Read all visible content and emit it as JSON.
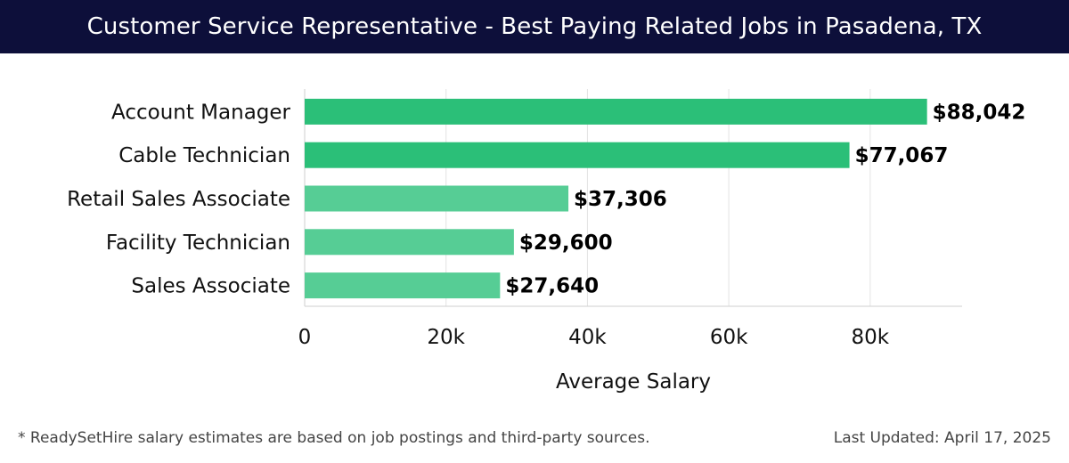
{
  "header": {
    "title": "Customer Service Representative - Best Paying Related Jobs in Pasadena, TX"
  },
  "footer": {
    "note": "* ReadySetHire salary estimates are based on job postings and third-party sources.",
    "last_updated": "Last Updated: April 17, 2025"
  },
  "chart_data": {
    "type": "bar",
    "orientation": "horizontal",
    "title": "Customer Service Representative - Best Paying Related Jobs in Pasadena, TX",
    "xlabel": "Average Salary",
    "ylabel": "",
    "categories": [
      "Account Manager",
      "Cable Technician",
      "Retail Sales Associate",
      "Facility Technician",
      "Sales Associate"
    ],
    "values": [
      88042,
      77067,
      37306,
      29600,
      27640
    ],
    "value_labels": [
      "$88,042",
      "$77,067",
      "$37,306",
      "$29,600",
      "$27,640"
    ],
    "xlim": [
      0,
      93000
    ],
    "xticks": [
      0,
      20000,
      40000,
      60000,
      80000
    ],
    "xtick_labels": [
      "0",
      "20k",
      "40k",
      "60k",
      "80k"
    ],
    "grid": true,
    "colors": {
      "top": "#2bbf78",
      "other": "#56cd95"
    }
  }
}
